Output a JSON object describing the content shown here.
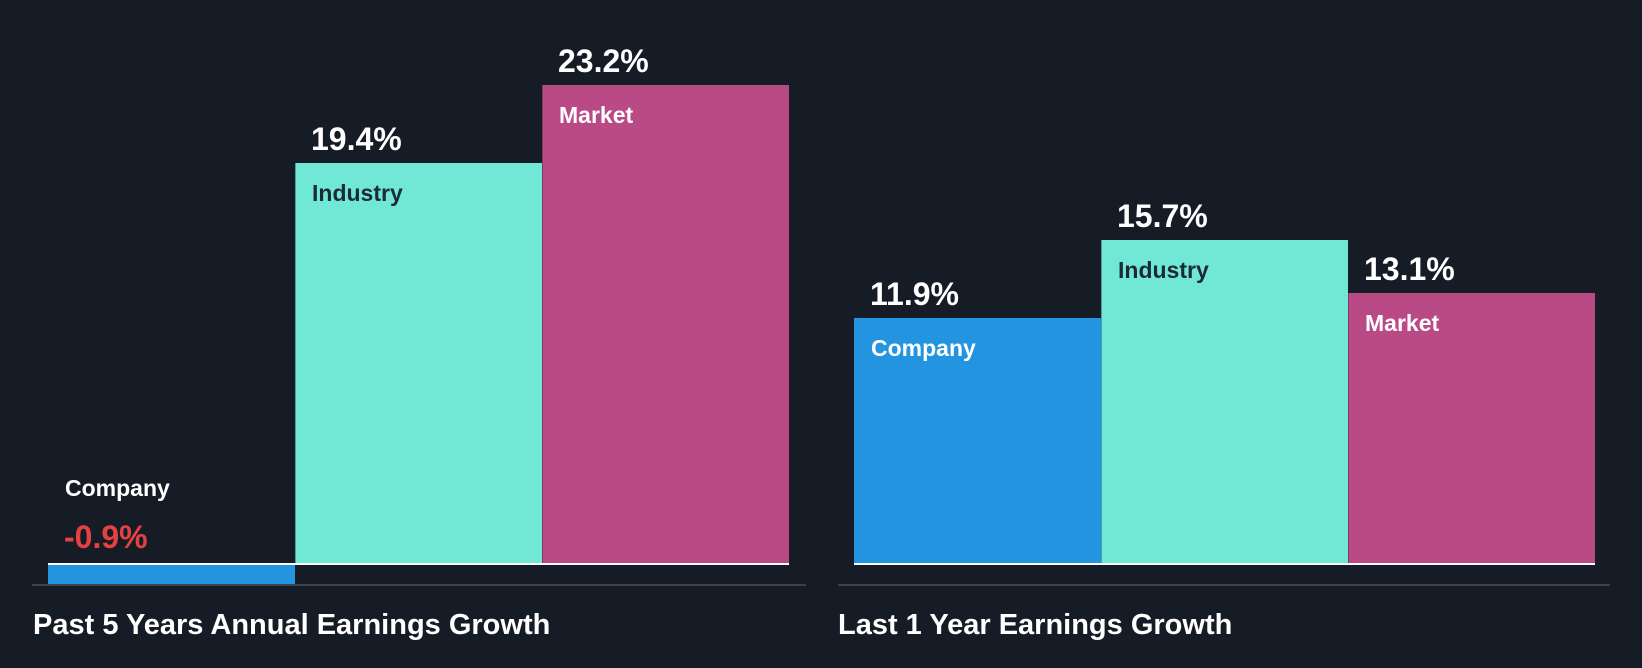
{
  "colors": {
    "background": "#161c25",
    "company": "#2394df",
    "industry": "#71e7d6",
    "market": "#ba4a86",
    "negative_text": "#e64141",
    "positive_text": "#ffffff",
    "axis": "#3c424c"
  },
  "chart_data": [
    {
      "type": "bar",
      "title": "Past 5 Years Annual Earnings Growth",
      "categories": [
        "Company",
        "Industry",
        "Market"
      ],
      "values": [
        -0.9,
        19.4,
        23.2
      ],
      "value_labels": [
        "-0.9%",
        "19.4%",
        "23.2%"
      ],
      "unit": "%",
      "xlabel": "",
      "ylabel": "",
      "grid": false,
      "legend": "none (labels inside bars)"
    },
    {
      "type": "bar",
      "title": "Last 1 Year Earnings Growth",
      "categories": [
        "Company",
        "Industry",
        "Market"
      ],
      "values": [
        11.9,
        15.7,
        13.1
      ],
      "value_labels": [
        "11.9%",
        "15.7%",
        "13.1%"
      ],
      "unit": "%",
      "xlabel": "",
      "ylabel": "",
      "grid": false,
      "legend": "none (labels inside bars)"
    }
  ]
}
